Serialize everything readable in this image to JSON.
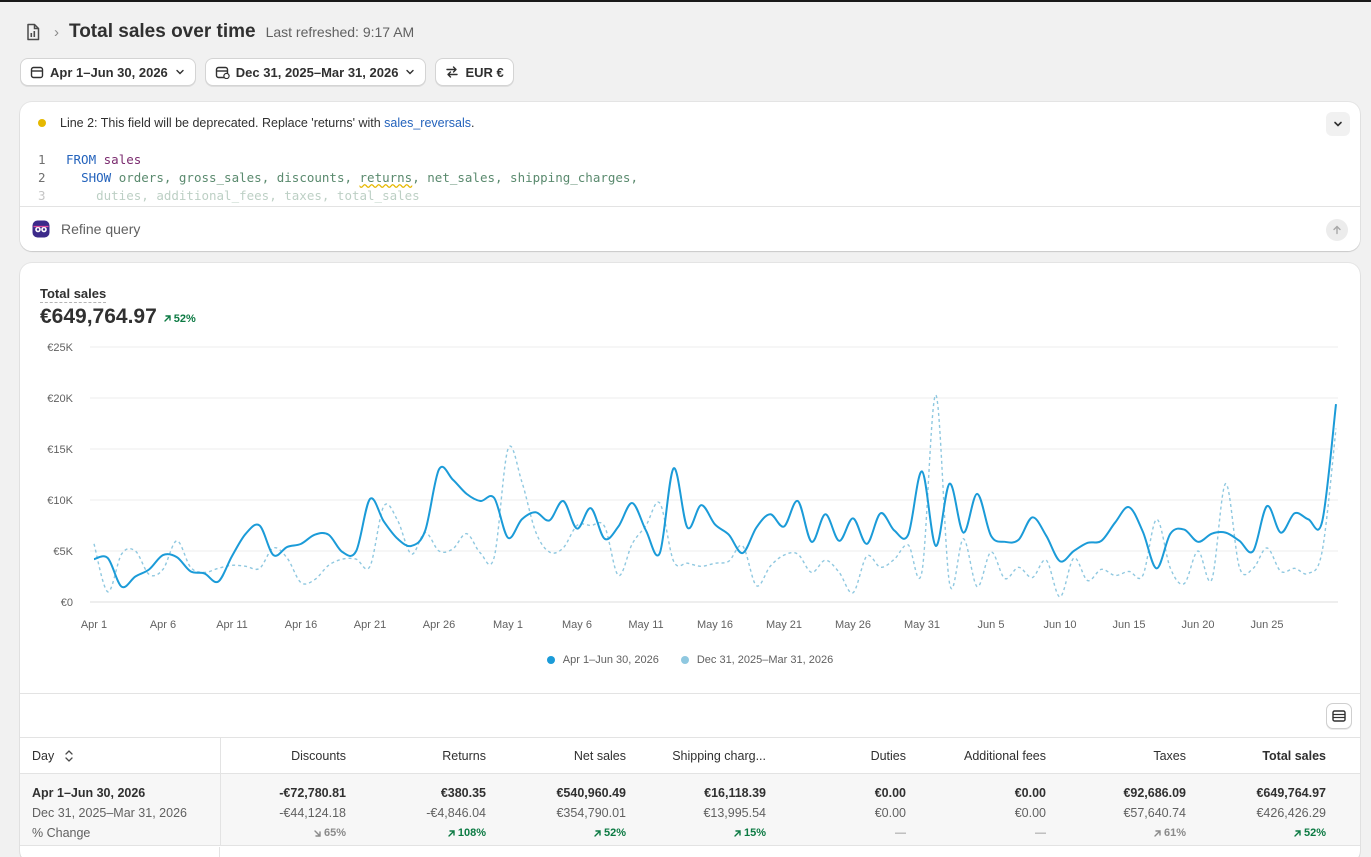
{
  "header": {
    "title": "Total sales over time",
    "refreshed": "Last refreshed: 9:17 AM",
    "report_icon": "report-icon"
  },
  "filters": {
    "date_range": "Apr 1–Jun 30, 2026",
    "compare_range": "Dec 31, 2025–Mar 31, 2026",
    "currency": "EUR €"
  },
  "query": {
    "warning": "Line 2: This field will be deprecated. Replace 'returns' with ",
    "warning_link": "sales_reversals",
    "warning_end": ".",
    "refine_placeholder": "Refine query",
    "lines": [
      {
        "num": "1",
        "kw": "FROM",
        "rest": "sales"
      },
      {
        "num": "2",
        "kw": "SHOW",
        "rest": "orders, gross_sales, discounts, returns, net_sales, shipping_charges,"
      },
      {
        "num": "3",
        "kw": "",
        "rest": "duties, additional_fees, taxes, total_sales"
      }
    ]
  },
  "metric": {
    "label": "Total sales",
    "value": "€649,764.97",
    "change": "52%"
  },
  "legend": {
    "current": "Apr 1–Jun 30, 2026",
    "previous": "Dec 31, 2025–Mar 31, 2026"
  },
  "chart_data": {
    "type": "line",
    "title": "Total sales",
    "ylim": [
      0,
      25000
    ],
    "y_ticks": [
      "€0",
      "€5K",
      "€10K",
      "€15K",
      "€20K",
      "€25K"
    ],
    "x_tick_labels": [
      "Apr 1",
      "Apr 6",
      "Apr 11",
      "Apr 16",
      "Apr 21",
      "Apr 26",
      "May 1",
      "May 6",
      "May 11",
      "May 16",
      "May 21",
      "May 26",
      "May 31",
      "Jun 5",
      "Jun 10",
      "Jun 15",
      "Jun 20",
      "Jun 25"
    ],
    "x_tick_index": [
      0,
      5,
      10,
      15,
      20,
      25,
      30,
      35,
      40,
      45,
      50,
      55,
      60,
      65,
      70,
      75,
      80,
      85
    ],
    "grid": true,
    "legend_position": "bottom",
    "series": [
      {
        "name": "Apr 1–Jun 30, 2026",
        "color": "#1b9bd8",
        "style": "solid",
        "values": [
          4200,
          4300,
          1500,
          2500,
          3200,
          4600,
          4400,
          3000,
          2800,
          2000,
          4500,
          6700,
          7500,
          4600,
          5400,
          5700,
          6600,
          6600,
          4900,
          5000,
          10100,
          7900,
          6200,
          5500,
          7000,
          13000,
          12000,
          10600,
          9900,
          10200,
          6300,
          8100,
          8800,
          8000,
          9900,
          7200,
          9200,
          6200,
          7400,
          9700,
          7000,
          4800,
          13100,
          7300,
          9500,
          7600,
          6600,
          4800,
          7300,
          8600,
          7400,
          9900,
          5900,
          8600,
          6000,
          8200,
          5700,
          8700,
          7000,
          6600,
          12800,
          5500,
          11600,
          6800,
          10600,
          6500,
          5900,
          6100,
          8300,
          6500,
          4000,
          5000,
          5800,
          6000,
          7800,
          9300,
          6900,
          3300,
          6700,
          7100,
          5900,
          6700,
          6800,
          6000,
          5000,
          9400,
          6800,
          8700,
          8100,
          7900,
          19400
        ]
      },
      {
        "name": "Dec 31, 2025–Mar 31, 2026",
        "color": "#8fc8e0",
        "style": "dashed",
        "values": [
          5700,
          1000,
          4700,
          5000,
          2700,
          3200,
          6000,
          3400,
          2900,
          3300,
          3600,
          3500,
          3300,
          5300,
          4300,
          1900,
          2200,
          3600,
          4200,
          4200,
          3500,
          9400,
          8000,
          4700,
          6800,
          5000,
          5200,
          6700,
          4800,
          4400,
          15000,
          11800,
          6900,
          4900,
          5300,
          7500,
          7500,
          7400,
          2600,
          5700,
          7500,
          9700,
          4000,
          3800,
          3500,
          3800,
          4000,
          5500,
          1600,
          3500,
          4600,
          4700,
          2900,
          4100,
          2900,
          900,
          4500,
          3400,
          4200,
          5600,
          3000,
          20300,
          1800,
          6200,
          1500,
          4900,
          2300,
          3400,
          2400,
          4100,
          500,
          4300,
          2100,
          3200,
          2600,
          3000,
          2600,
          8100,
          3300,
          1800,
          5000,
          2200,
          11600,
          3400,
          3300,
          5300,
          3000,
          3300,
          2800,
          5000,
          17000
        ]
      }
    ]
  },
  "table": {
    "headers": [
      "Day",
      "Discounts",
      "Returns",
      "Net sales",
      "Shipping charg...",
      "Duties",
      "Additional fees",
      "Taxes",
      "Total sales"
    ],
    "row_labels": [
      "Apr 1–Jun 30, 2026",
      "Dec 31, 2025–Mar 31, 2026",
      "% Change"
    ],
    "columns": [
      {
        "current": "-€72,780.81",
        "previous": "-€44,124.18",
        "change": "65%",
        "dir": "down"
      },
      {
        "current": "€380.35",
        "previous": "-€4,846.04",
        "change": "108%",
        "dir": "up"
      },
      {
        "current": "€540,960.49",
        "previous": "€354,790.01",
        "change": "52%",
        "dir": "up"
      },
      {
        "current": "€16,118.39",
        "previous": "€13,995.54",
        "change": "15%",
        "dir": "up"
      },
      {
        "current": "€0.00",
        "previous": "€0.00",
        "change": "—",
        "dir": "none"
      },
      {
        "current": "€0.00",
        "previous": "€0.00",
        "change": "—",
        "dir": "none"
      },
      {
        "current": "€92,686.09",
        "previous": "€57,640.74",
        "change": "61%",
        "dir": "gray"
      },
      {
        "current": "€649,764.97",
        "previous": "€426,426.29",
        "change": "52%",
        "dir": "up"
      }
    ]
  },
  "colors": {
    "accent": "#1b9bd8",
    "compare": "#8fc8e0",
    "positive": "#0c7a43",
    "warning": "#e5b800",
    "link": "#2463bc"
  }
}
